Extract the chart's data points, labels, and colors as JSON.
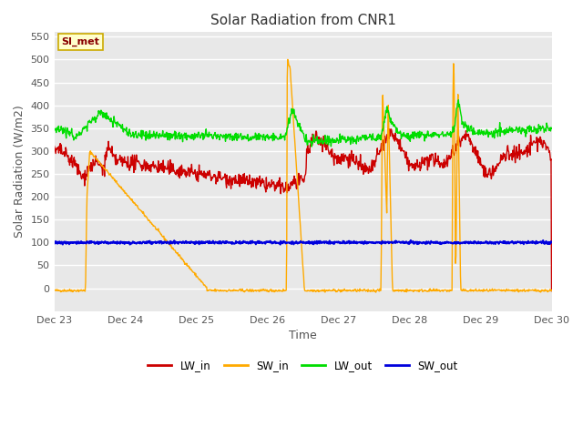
{
  "title": "Solar Radiation from CNR1",
  "xlabel": "Time",
  "ylabel": "Solar Radiation (W/m2)",
  "ylim": [
    -50,
    560
  ],
  "yticks": [
    0,
    50,
    100,
    150,
    200,
    250,
    300,
    350,
    400,
    450,
    500,
    550
  ],
  "fig_bg_color": "#ffffff",
  "plot_bg_color": "#e8e8e8",
  "grid_color": "#ffffff",
  "annotation_text": "SI_met",
  "annotation_bg": "#ffffcc",
  "annotation_border": "#ccaa00",
  "legend_entries": [
    "LW_in",
    "SW_in",
    "LW_out",
    "SW_out"
  ],
  "line_colors": {
    "LW_in": "#cc0000",
    "SW_in": "#ffaa00",
    "LW_out": "#00dd00",
    "SW_out": "#0000dd"
  },
  "x_tick_labels": [
    "Dec 23",
    "Dec 24",
    "Dec 25",
    "Dec 26",
    "Dec 27",
    "Dec 28",
    "Dec 29",
    "Dec 30"
  ],
  "n_points": 1000
}
